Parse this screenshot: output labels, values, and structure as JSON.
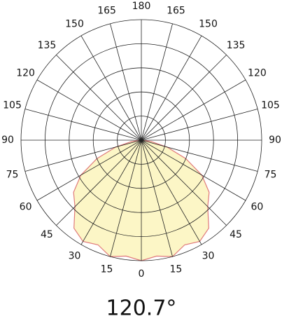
{
  "chart_data": {
    "type": "polar",
    "annotation": "120.7°",
    "angles": [
      0,
      15,
      30,
      45,
      60,
      75,
      90,
      105,
      120,
      135,
      150,
      165,
      180
    ],
    "rlim": [
      0,
      5
    ],
    "rticks": [
      1,
      2,
      3,
      4,
      5
    ],
    "x": [
      -90,
      -82.5,
      -75,
      -67.5,
      -60,
      -52.5,
      -45,
      -37.5,
      -30,
      -22.5,
      -15,
      -7.5,
      0,
      7.5,
      15,
      22.5,
      30,
      37.5,
      45,
      52.5,
      60,
      67.5,
      75,
      82.5,
      90
    ],
    "values": [
      0,
      0.4,
      1.1,
      2.0,
      2.9,
      3.55,
      3.9,
      4.6,
      4.85,
      4.7,
      5.0,
      4.85,
      5.0,
      4.85,
      5.0,
      4.7,
      4.85,
      4.6,
      3.9,
      3.55,
      2.9,
      2.0,
      1.1,
      0.4,
      0
    ],
    "fill": "#fcf6c6",
    "color": "#e07a7a"
  }
}
